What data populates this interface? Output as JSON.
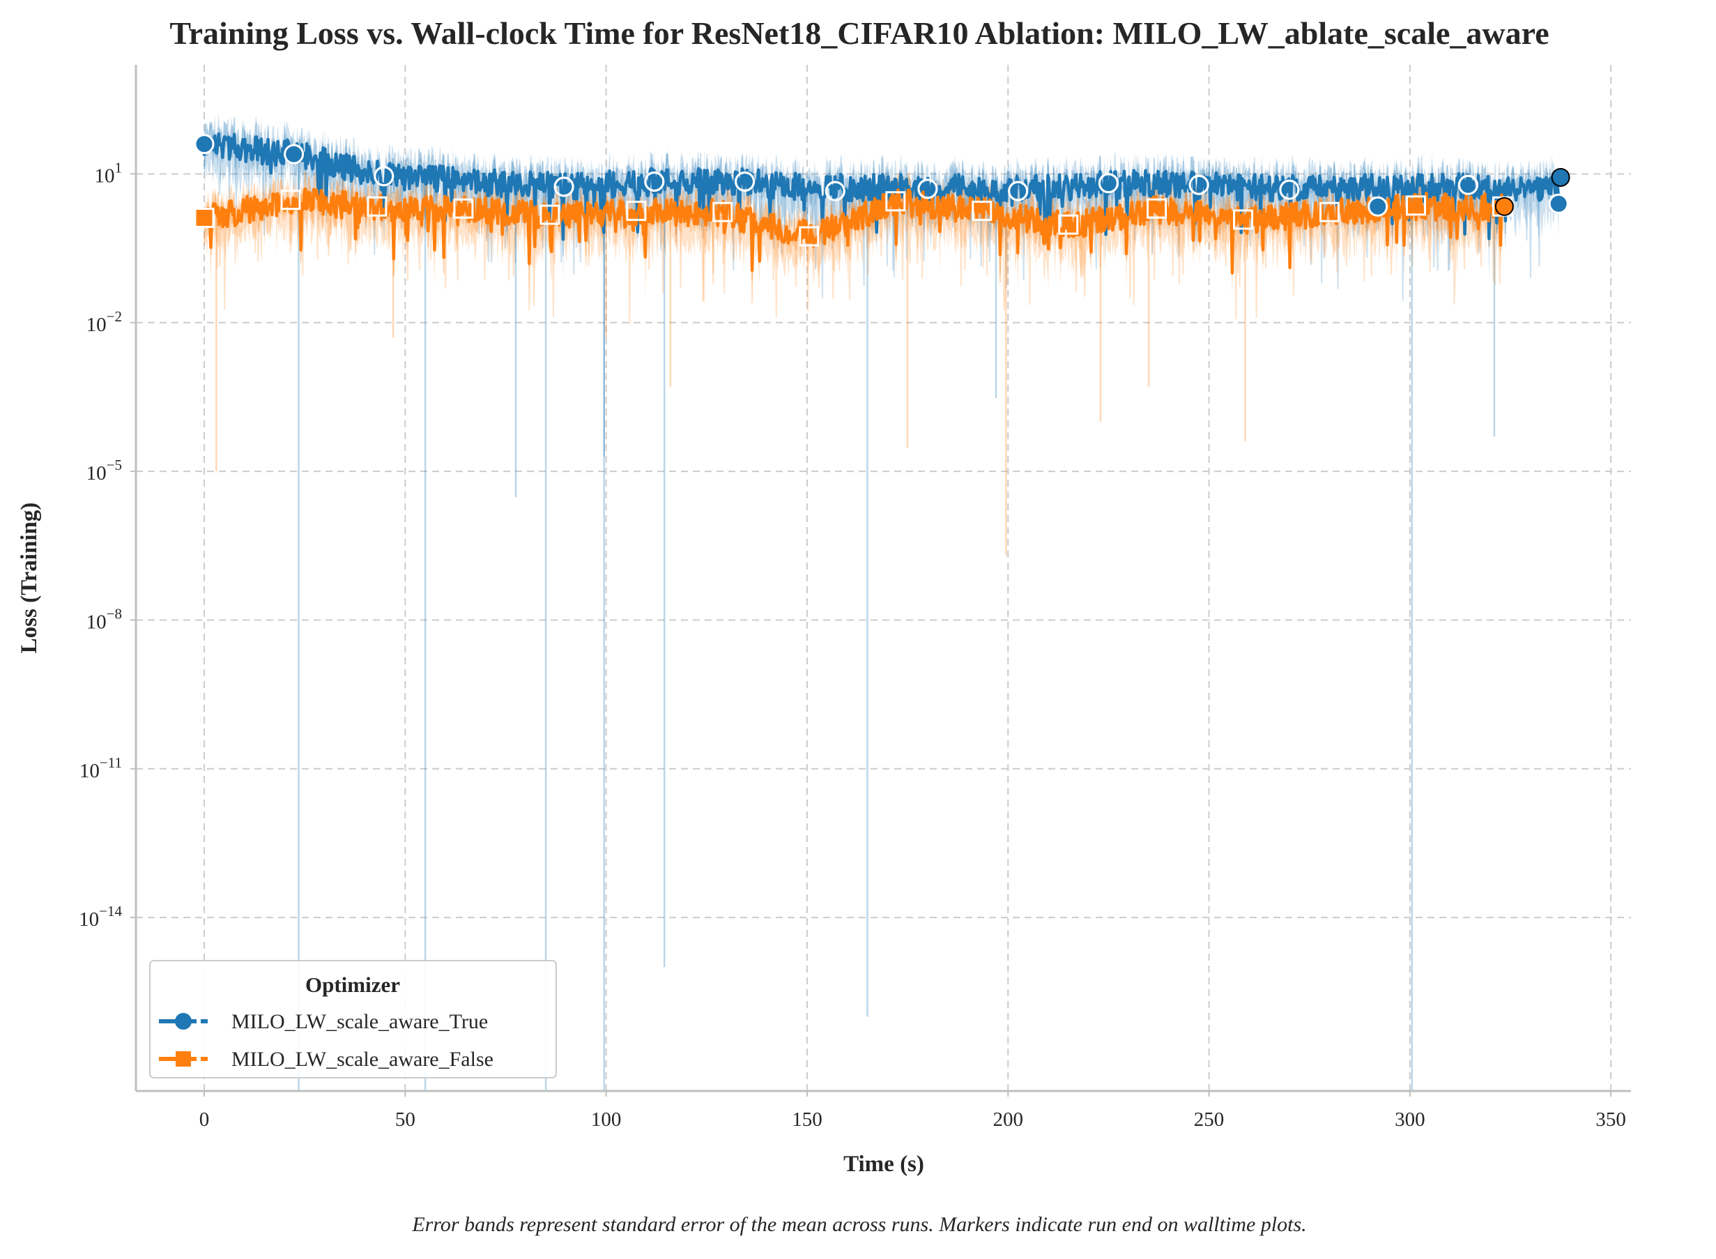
{
  "chart_data": {
    "type": "line",
    "title": "Training Loss vs. Wall-clock Time for ResNet18_CIFAR10 Ablation: MILO_LW_ablate_scale_aware",
    "xlabel": "Time (s)",
    "ylabel": "Loss (Training)",
    "x_scale": "linear",
    "y_scale": "log",
    "xlim": [
      -17,
      355
    ],
    "ylim_log10": [
      -17.5,
      3.2
    ],
    "x_ticks": [
      0,
      50,
      100,
      150,
      200,
      250,
      300,
      350
    ],
    "x_tick_labels": [
      "0",
      "50",
      "100",
      "150",
      "200",
      "250",
      "300",
      "350"
    ],
    "y_tick_exponents": [
      1,
      -2,
      -5,
      -8,
      -11,
      -14
    ],
    "y_tick_base": "10",
    "grid": true,
    "legend": {
      "title": "Optimizer",
      "placement": "lower-left",
      "entries": [
        "MILO_LW_scale_aware_True",
        "MILO_LW_scale_aware_False"
      ]
    },
    "series": [
      {
        "name": "MILO_LW_scale_aware_True",
        "color": "#1f77b4",
        "marker": "circle",
        "x_end": 337,
        "markers": [
          {
            "x": 0,
            "y": 40
          },
          {
            "x": 22.3,
            "y": 25
          },
          {
            "x": 44.7,
            "y": 9
          },
          {
            "x": 89.5,
            "y": 5.5
          },
          {
            "x": 112,
            "y": 7
          },
          {
            "x": 134.5,
            "y": 7
          },
          {
            "x": 157,
            "y": 4.5
          },
          {
            "x": 180,
            "y": 5
          },
          {
            "x": 202.5,
            "y": 4.5
          },
          {
            "x": 225,
            "y": 6.5
          },
          {
            "x": 247.5,
            "y": 6
          },
          {
            "x": 270,
            "y": 4.8
          },
          {
            "x": 292,
            "y": 2.2
          },
          {
            "x": 314.5,
            "y": 6
          },
          {
            "x": 337,
            "y": 2.5
          }
        ],
        "end_marker": {
          "x": 337.5,
          "y": 8.5
        },
        "deep_spikes": [
          {
            "x": 23.5,
            "y": 1e-18
          },
          {
            "x": 55,
            "y": 1e-18
          },
          {
            "x": 85,
            "y": 1e-18
          },
          {
            "x": 99.5,
            "y": 1e-18
          },
          {
            "x": 114.5,
            "y": 1e-15
          },
          {
            "x": 165,
            "y": 1e-16
          },
          {
            "x": 300.5,
            "y": 1e-18
          },
          {
            "x": 77.5,
            "y": 3e-06
          },
          {
            "x": 99.5,
            "y": 2e-05
          },
          {
            "x": 197,
            "y": 0.0003
          },
          {
            "x": 321,
            "y": 5e-05
          }
        ]
      },
      {
        "name": "MILO_LW_scale_aware_False",
        "color": "#ff7f0e",
        "marker": "square",
        "x_end": 323.5,
        "markers": [
          {
            "x": 0,
            "y": 1.3
          },
          {
            "x": 21.5,
            "y": 3.0
          },
          {
            "x": 43,
            "y": 2.2
          },
          {
            "x": 64.5,
            "y": 2.0
          },
          {
            "x": 86,
            "y": 1.5
          },
          {
            "x": 107.5,
            "y": 1.8
          },
          {
            "x": 129,
            "y": 1.7
          },
          {
            "x": 150.5,
            "y": 0.55
          },
          {
            "x": 172,
            "y": 2.8
          },
          {
            "x": 193.5,
            "y": 1.8
          },
          {
            "x": 215,
            "y": 0.95
          },
          {
            "x": 237,
            "y": 2.0
          },
          {
            "x": 258.5,
            "y": 1.2
          },
          {
            "x": 280,
            "y": 1.7
          },
          {
            "x": 301.5,
            "y": 2.3
          },
          {
            "x": 323,
            "y": 2.2
          }
        ],
        "end_marker": {
          "x": 323.5,
          "y": 2.2
        },
        "deep_spikes": [
          {
            "x": 3,
            "y": 1e-05
          },
          {
            "x": 47,
            "y": 0.005
          },
          {
            "x": 100,
            "y": 0.005
          },
          {
            "x": 116,
            "y": 0.0005
          },
          {
            "x": 175,
            "y": 3e-05
          },
          {
            "x": 199.5,
            "y": 2e-07
          },
          {
            "x": 223,
            "y": 0.0001
          },
          {
            "x": 235,
            "y": 0.0005
          },
          {
            "x": 259,
            "y": 4e-05
          }
        ]
      }
    ],
    "caption": "Error bands represent standard error of the mean across runs. Markers indicate run end on walltime plots."
  },
  "colors": {
    "series_true": "#1f77b4",
    "series_false": "#ff7f0e",
    "grid": "#cccccc",
    "axis": "#bfbfbf",
    "text": "#262626"
  }
}
